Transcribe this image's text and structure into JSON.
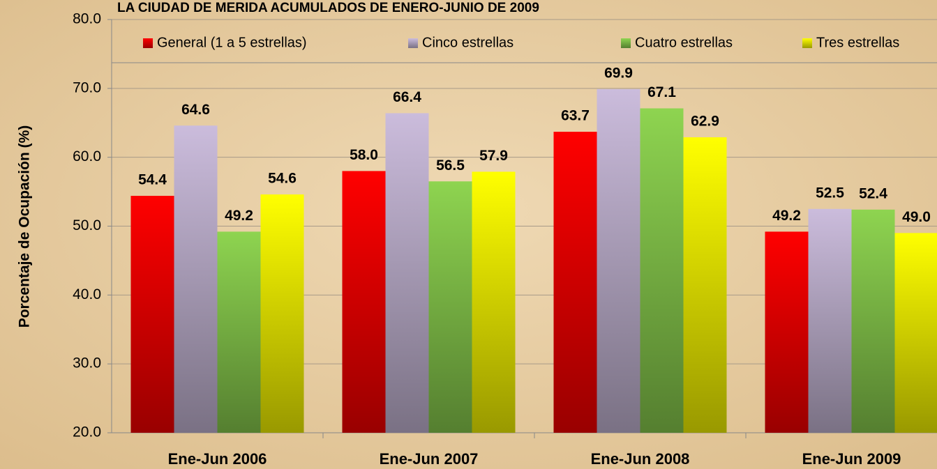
{
  "chart_data": {
    "type": "bar",
    "title": "LA CIUDAD DE MERIDA ACUMULADOS DE ENERO-JUNIO DE 2009",
    "y_label": "Porcentaje de Ocupación (%)",
    "categories": [
      "Ene-Jun 2006",
      "Ene-Jun 2007",
      "Ene-Jun 2008",
      "Ene-Jun 2009"
    ],
    "series": [
      {
        "name": "General (1 a 5 estrellas)",
        "color": "#ff0000",
        "values": [
          54.4,
          58.0,
          63.7,
          49.2
        ],
        "value_labels": [
          "54.4",
          "58.0",
          "63.7",
          "49.2"
        ]
      },
      {
        "name": "Cinco estrellas",
        "color": "#cbbcdc",
        "values": [
          64.6,
          66.4,
          69.9,
          52.5
        ],
        "value_labels": [
          "64.6",
          "66.4",
          "69.9",
          "52.5"
        ]
      },
      {
        "name": "Cuatro estrellas",
        "color": "#8ed450",
        "values": [
          49.2,
          56.5,
          67.1,
          52.4
        ],
        "value_labels": [
          "49.2",
          "56.5",
          "67.1",
          "52.4"
        ]
      },
      {
        "name": "Tres estrellas",
        "color": "#ffff00",
        "values": [
          54.6,
          57.9,
          62.9,
          49.0
        ],
        "value_labels": [
          "54.6",
          "57.9",
          "62.9",
          "49.0"
        ]
      }
    ],
    "ylim": [
      20,
      80
    ],
    "yticks": [
      {
        "value": 20,
        "label": "20.0"
      },
      {
        "value": 30,
        "label": "30.0"
      },
      {
        "value": 40,
        "label": "40.0"
      },
      {
        "value": 50,
        "label": "50.0"
      },
      {
        "value": 60,
        "label": "60.0"
      },
      {
        "value": 70,
        "label": "70.0"
      },
      {
        "value": 80,
        "label": "80.0"
      }
    ],
    "grid": true,
    "legend": "top"
  }
}
